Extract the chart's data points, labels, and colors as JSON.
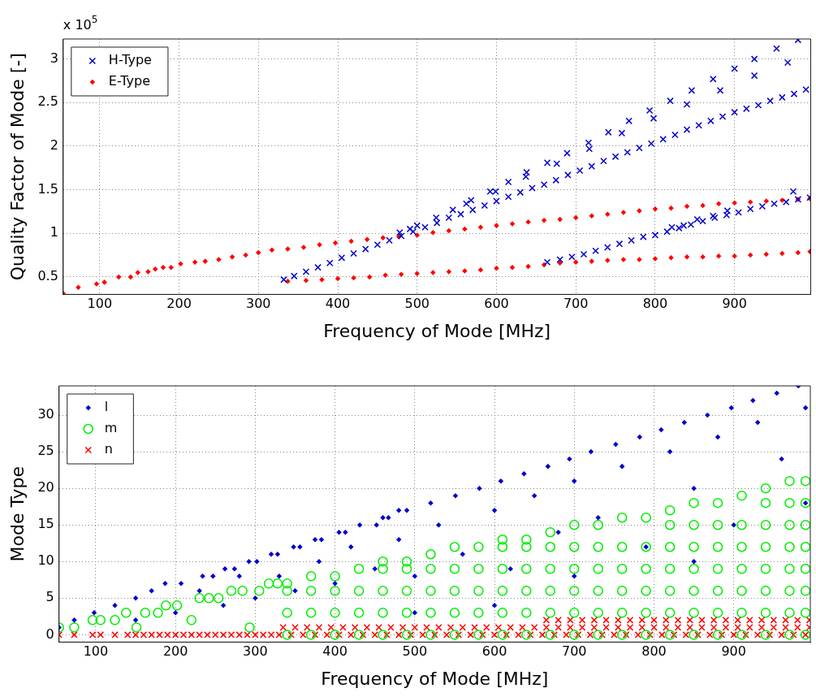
{
  "chart_data": [
    {
      "type": "scatter",
      "xlabel": "Frequency of Mode [MHz]",
      "ylabel": "Quality Factor of Mode [-]",
      "annotations": [
        "x 10$^{5}$"
      ],
      "xlim": [
        54,
        996
      ],
      "ylim": [
        0.3,
        3.23
      ],
      "xticks": [
        100,
        200,
        300,
        400,
        500,
        600,
        700,
        800,
        900
      ],
      "yticks": [
        0.5,
        1,
        1.5,
        2,
        2.5,
        3
      ],
      "grid": true,
      "legend": "top left",
      "series": [
        {
          "name": "H-Type",
          "color": "#0000cc",
          "marker": "cross",
          "x": [
            478,
            491,
            500,
            524,
            545,
            562,
            568,
            592,
            599,
            615,
            637,
            638,
            664,
            676,
            689,
            716,
            717,
            741,
            758,
            767,
            793,
            798,
            819,
            840,
            846,
            873,
            882,
            900,
            925,
            925,
            953,
            967,
            980,
            332,
            345,
            360,
            375,
            390,
            405,
            420,
            435,
            450,
            465,
            480,
            495,
            510,
            525,
            540,
            555,
            570,
            585,
            600,
            615,
            630,
            645,
            660,
            675,
            690,
            705,
            720,
            735,
            750,
            765,
            780,
            795,
            810,
            825,
            840,
            855,
            870,
            885,
            900,
            915,
            930,
            945,
            960,
            975,
            990,
            664,
            680,
            695,
            710,
            725,
            740,
            755,
            770,
            785,
            800,
            815,
            830,
            845,
            860,
            875,
            890,
            905,
            920,
            935,
            950,
            965,
            980,
            995,
            821,
            836,
            853,
            873,
            891,
            974
          ],
          "values": [
            1.01,
            1.05,
            1.09,
            1.18,
            1.27,
            1.34,
            1.38,
            1.48,
            1.48,
            1.59,
            1.65,
            1.7,
            1.81,
            1.8,
            1.92,
            2.04,
            1.97,
            2.16,
            2.15,
            2.29,
            2.41,
            2.32,
            2.52,
            2.48,
            2.64,
            2.77,
            2.64,
            2.89,
            3.0,
            2.81,
            3.12,
            2.96,
            3.22,
            0.47,
            0.51,
            0.56,
            0.61,
            0.66,
            0.72,
            0.77,
            0.82,
            0.87,
            0.92,
            0.97,
            1.02,
            1.07,
            1.12,
            1.18,
            1.22,
            1.27,
            1.32,
            1.37,
            1.42,
            1.47,
            1.52,
            1.56,
            1.61,
            1.67,
            1.72,
            1.77,
            1.83,
            1.88,
            1.93,
            1.98,
            2.03,
            2.08,
            2.13,
            2.19,
            2.24,
            2.29,
            2.34,
            2.39,
            2.43,
            2.47,
            2.52,
            2.56,
            2.6,
            2.65,
            0.67,
            0.7,
            0.73,
            0.76,
            0.8,
            0.84,
            0.88,
            0.92,
            0.96,
            0.98,
            1.02,
            1.06,
            1.1,
            1.14,
            1.18,
            1.21,
            1.24,
            1.28,
            1.31,
            1.34,
            1.36,
            1.39,
            1.41,
            1.07,
            1.09,
            1.16,
            1.2,
            1.26,
            1.48
          ]
        },
        {
          "name": "E-Type",
          "color": "#ff0000",
          "marker": "diamond",
          "x": [
            54,
            73,
            96,
            106,
            124,
            139,
            148,
            161,
            170,
            180,
            190,
            202,
            220,
            233,
            250,
            267,
            284,
            300,
            317,
            337,
            357,
            377,
            397,
            417,
            437,
            457,
            477,
            500,
            520,
            540,
            560,
            580,
            600,
            620,
            640,
            660,
            680,
            700,
            720,
            740,
            760,
            780,
            800,
            820,
            840,
            860,
            880,
            900,
            920,
            940,
            960,
            980,
            995,
            337,
            360,
            380,
            400,
            420,
            440,
            460,
            480,
            500,
            520,
            540,
            560,
            580,
            600,
            620,
            640,
            660,
            680,
            700,
            720,
            740,
            760,
            780,
            800,
            820,
            840,
            860,
            880,
            900,
            920,
            940,
            960,
            980,
            995
          ],
          "values": [
            0.31,
            0.38,
            0.42,
            0.44,
            0.5,
            0.5,
            0.55,
            0.56,
            0.59,
            0.61,
            0.61,
            0.65,
            0.67,
            0.68,
            0.7,
            0.73,
            0.75,
            0.78,
            0.81,
            0.82,
            0.84,
            0.87,
            0.89,
            0.91,
            0.93,
            0.95,
            0.96,
            0.98,
            1.01,
            1.03,
            1.05,
            1.07,
            1.09,
            1.11,
            1.13,
            1.15,
            1.16,
            1.18,
            1.2,
            1.22,
            1.24,
            1.26,
            1.28,
            1.29,
            1.31,
            1.32,
            1.34,
            1.35,
            1.36,
            1.37,
            1.38,
            1.39,
            1.4,
            0.45,
            0.46,
            0.47,
            0.48,
            0.49,
            0.5,
            0.52,
            0.53,
            0.54,
            0.55,
            0.56,
            0.57,
            0.58,
            0.6,
            0.61,
            0.62,
            0.64,
            0.66,
            0.67,
            0.68,
            0.69,
            0.7,
            0.7,
            0.71,
            0.72,
            0.73,
            0.73,
            0.74,
            0.74,
            0.75,
            0.76,
            0.77,
            0.78,
            0.79
          ]
        }
      ]
    },
    {
      "type": "scatter",
      "xlabel": "Frequency of Mode [MHz]",
      "ylabel": "Mode Type",
      "xlim": [
        54,
        996
      ],
      "ylim": [
        -1,
        34
      ],
      "xticks": [
        100,
        200,
        300,
        400,
        500,
        600,
        700,
        800,
        900
      ],
      "yticks": [
        0,
        5,
        10,
        15,
        20,
        25,
        30
      ],
      "grid": true,
      "legend": "top left",
      "series": [
        {
          "name": "l",
          "color": "#0000cc",
          "marker": "diamond",
          "x": [
            54,
            73,
            98,
            124,
            150,
            170,
            187,
            207,
            234,
            247,
            262,
            274,
            292,
            302,
            320,
            328,
            348,
            356,
            375,
            383,
            405,
            413,
            431,
            452,
            460,
            467,
            480,
            490,
            520,
            551,
            581,
            608,
            637,
            667,
            694,
            721,
            752,
            782,
            809,
            838,
            867,
            897,
            924,
            954,
            981,
            150,
            200,
            230,
            260,
            280,
            300,
            330,
            350,
            380,
            400,
            420,
            450,
            480,
            500,
            530,
            560,
            600,
            620,
            650,
            680,
            700,
            730,
            760,
            790,
            820,
            850,
            880,
            900,
            930,
            960,
            990,
            990,
            850,
            700,
            600,
            500
          ],
          "values": [
            1,
            2,
            3,
            4,
            5,
            6,
            7,
            7,
            8,
            8,
            9,
            9,
            10,
            10,
            11,
            11,
            12,
            12,
            13,
            13,
            14,
            14,
            15,
            15,
            16,
            16,
            17,
            17,
            18,
            19,
            20,
            21,
            22,
            23,
            24,
            25,
            26,
            27,
            28,
            29,
            30,
            31,
            32,
            33,
            34,
            2,
            3,
            6,
            4,
            8,
            5,
            8,
            6,
            10,
            7,
            12,
            9,
            13,
            8,
            15,
            11,
            17,
            9,
            19,
            14,
            21,
            16,
            23,
            12,
            25,
            20,
            27,
            15,
            29,
            24,
            31,
            18,
            10,
            8,
            4,
            3
          ]
        },
        {
          "name": "m",
          "color": "#00ee00",
          "marker": "circle",
          "x": [
            54,
            73,
            96,
            106,
            124,
            138,
            151,
            162,
            178,
            188,
            202,
            220,
            230,
            242,
            254,
            270,
            284,
            293,
            305,
            317,
            328,
            340,
            340,
            340,
            340,
            370,
            370,
            370,
            370,
            400,
            400,
            400,
            400,
            430,
            430,
            430,
            430,
            460,
            460,
            460,
            460,
            460,
            490,
            490,
            490,
            490,
            490,
            520,
            520,
            520,
            520,
            520,
            550,
            550,
            550,
            550,
            550,
            580,
            580,
            580,
            580,
            580,
            610,
            610,
            610,
            610,
            610,
            610,
            640,
            640,
            640,
            640,
            640,
            640,
            670,
            670,
            670,
            670,
            670,
            670,
            700,
            700,
            700,
            700,
            700,
            700,
            730,
            730,
            730,
            730,
            730,
            730,
            760,
            760,
            760,
            760,
            760,
            760,
            790,
            790,
            790,
            790,
            790,
            790,
            820,
            820,
            820,
            820,
            820,
            820,
            820,
            850,
            850,
            850,
            850,
            850,
            850,
            850,
            880,
            880,
            880,
            880,
            880,
            880,
            880,
            910,
            910,
            910,
            910,
            910,
            910,
            910,
            940,
            940,
            940,
            940,
            940,
            940,
            940,
            940,
            970,
            970,
            970,
            970,
            970,
            970,
            970,
            970,
            990,
            990,
            990,
            990,
            990,
            990,
            990,
            990
          ],
          "values": [
            1,
            1,
            2,
            2,
            2,
            3,
            1,
            3,
            3,
            4,
            4,
            2,
            5,
            5,
            5,
            6,
            6,
            1,
            6,
            7,
            7,
            0,
            3,
            6,
            7,
            0,
            3,
            6,
            8,
            0,
            3,
            6,
            8,
            0,
            3,
            6,
            9,
            0,
            3,
            6,
            9,
            10,
            0,
            3,
            6,
            9,
            10,
            0,
            3,
            6,
            9,
            11,
            0,
            3,
            6,
            9,
            12,
            0,
            3,
            6,
            9,
            12,
            0,
            3,
            6,
            9,
            12,
            13,
            0,
            3,
            6,
            9,
            12,
            13,
            0,
            3,
            6,
            9,
            12,
            14,
            0,
            3,
            6,
            9,
            12,
            15,
            0,
            3,
            6,
            9,
            12,
            15,
            0,
            3,
            6,
            9,
            12,
            16,
            0,
            3,
            6,
            9,
            12,
            16,
            0,
            3,
            6,
            9,
            12,
            15,
            17,
            0,
            3,
            6,
            9,
            12,
            15,
            18,
            0,
            3,
            6,
            9,
            12,
            15,
            18,
            0,
            3,
            6,
            9,
            12,
            15,
            19,
            0,
            3,
            6,
            9,
            12,
            15,
            18,
            20,
            0,
            3,
            6,
            9,
            12,
            15,
            18,
            21,
            0,
            3,
            6,
            9,
            12,
            15,
            18,
            21
          ]
        },
        {
          "name": "n",
          "color": "#ff0000",
          "marker": "cross",
          "x": [
            54,
            73,
            96,
            106,
            124,
            140,
            150,
            160,
            170,
            180,
            190,
            200,
            210,
            220,
            230,
            240,
            250,
            260,
            270,
            280,
            290,
            300,
            310,
            320,
            330,
            345,
            360,
            375,
            390,
            405,
            420,
            435,
            450,
            465,
            480,
            495,
            510,
            525,
            540,
            555,
            570,
            585,
            600,
            615,
            630,
            645,
            660,
            675,
            690,
            705,
            720,
            735,
            750,
            765,
            780,
            795,
            810,
            825,
            840,
            855,
            870,
            885,
            900,
            915,
            930,
            945,
            960,
            975,
            990,
            335,
            350,
            365,
            380,
            395,
            410,
            425,
            440,
            455,
            470,
            485,
            500,
            515,
            530,
            545,
            560,
            575,
            590,
            605,
            620,
            635,
            650,
            665,
            680,
            695,
            710,
            725,
            740,
            755,
            770,
            785,
            800,
            815,
            830,
            845,
            860,
            875,
            890,
            905,
            920,
            935,
            950,
            965,
            980,
            995,
            665,
            680,
            695,
            710,
            725,
            740,
            755,
            770,
            785,
            800,
            815,
            830,
            845,
            860,
            875,
            890,
            905,
            920,
            935,
            950,
            965,
            980,
            995
          ],
          "values": [
            0,
            0,
            0,
            0,
            0,
            0,
            0,
            0,
            0,
            0,
            0,
            0,
            0,
            0,
            0,
            0,
            0,
            0,
            0,
            0,
            0,
            0,
            0,
            0,
            0,
            0,
            0,
            0,
            0,
            0,
            0,
            0,
            0,
            0,
            0,
            0,
            0,
            0,
            0,
            0,
            0,
            0,
            0,
            0,
            0,
            0,
            0,
            0,
            0,
            0,
            0,
            0,
            0,
            0,
            0,
            0,
            0,
            0,
            0,
            0,
            0,
            0,
            0,
            0,
            0,
            0,
            0,
            0,
            0,
            1,
            1,
            1,
            1,
            1,
            1,
            1,
            1,
            1,
            1,
            1,
            1,
            1,
            1,
            1,
            1,
            1,
            1,
            1,
            1,
            1,
            1,
            1,
            1,
            1,
            1,
            1,
            1,
            1,
            1,
            1,
            1,
            1,
            1,
            1,
            1,
            1,
            1,
            1,
            1,
            1,
            1,
            1,
            1,
            1,
            2,
            2,
            2,
            2,
            2,
            2,
            2,
            2,
            2,
            2,
            2,
            2,
            2,
            2,
            2,
            2,
            2,
            2,
            2,
            2,
            2,
            2,
            2
          ]
        }
      ]
    }
  ]
}
